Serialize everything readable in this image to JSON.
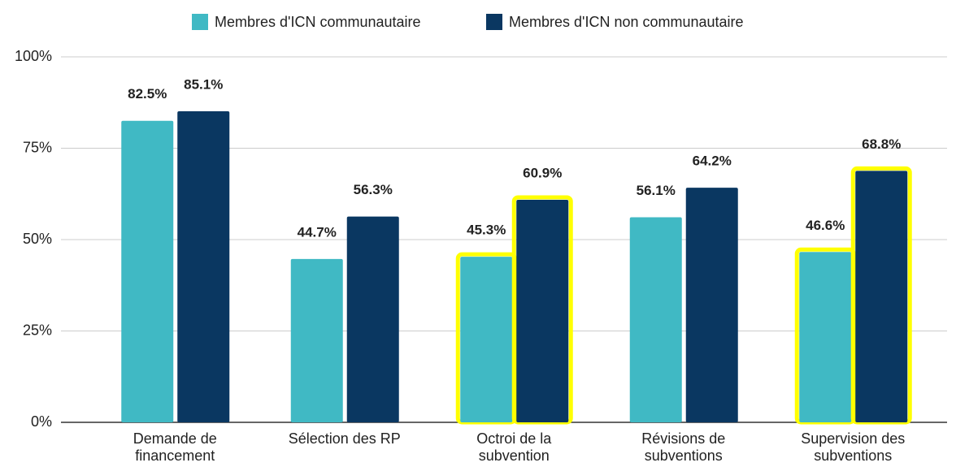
{
  "chart_data": {
    "type": "bar",
    "categories": [
      "Demande de\nfinancement",
      "Sélection des RP",
      "Octroi de la\nsubvention",
      "Révisions de\nsubventions",
      "Supervision des\nsubventions"
    ],
    "series": [
      {
        "name": "Membres d'ICN communautaire",
        "color": "#40b9c4",
        "values": [
          82.5,
          44.7,
          45.3,
          56.1,
          46.6
        ],
        "value_labels": [
          "82.5%",
          "44.7%",
          "45.3%",
          "56.1%",
          "46.6%"
        ],
        "highlight": [
          false,
          false,
          true,
          false,
          true
        ]
      },
      {
        "name": "Membres d'ICN non communautaire",
        "color": "#0a3761",
        "values": [
          85.1,
          56.3,
          60.9,
          64.2,
          68.8
        ],
        "value_labels": [
          "85.1%",
          "56.3%",
          "60.9%",
          "64.2%",
          "68.8%"
        ],
        "highlight": [
          false,
          false,
          true,
          false,
          true
        ]
      }
    ],
    "highlight_color": "#ffff00",
    "ylim": [
      0,
      100
    ],
    "yticks": [
      {
        "value": 0,
        "label": "0%"
      },
      {
        "value": 25,
        "label": "25%"
      },
      {
        "value": 50,
        "label": "50%"
      },
      {
        "value": 75,
        "label": "75%"
      },
      {
        "value": 100,
        "label": "100%"
      }
    ],
    "grid": true,
    "legend": "top"
  }
}
